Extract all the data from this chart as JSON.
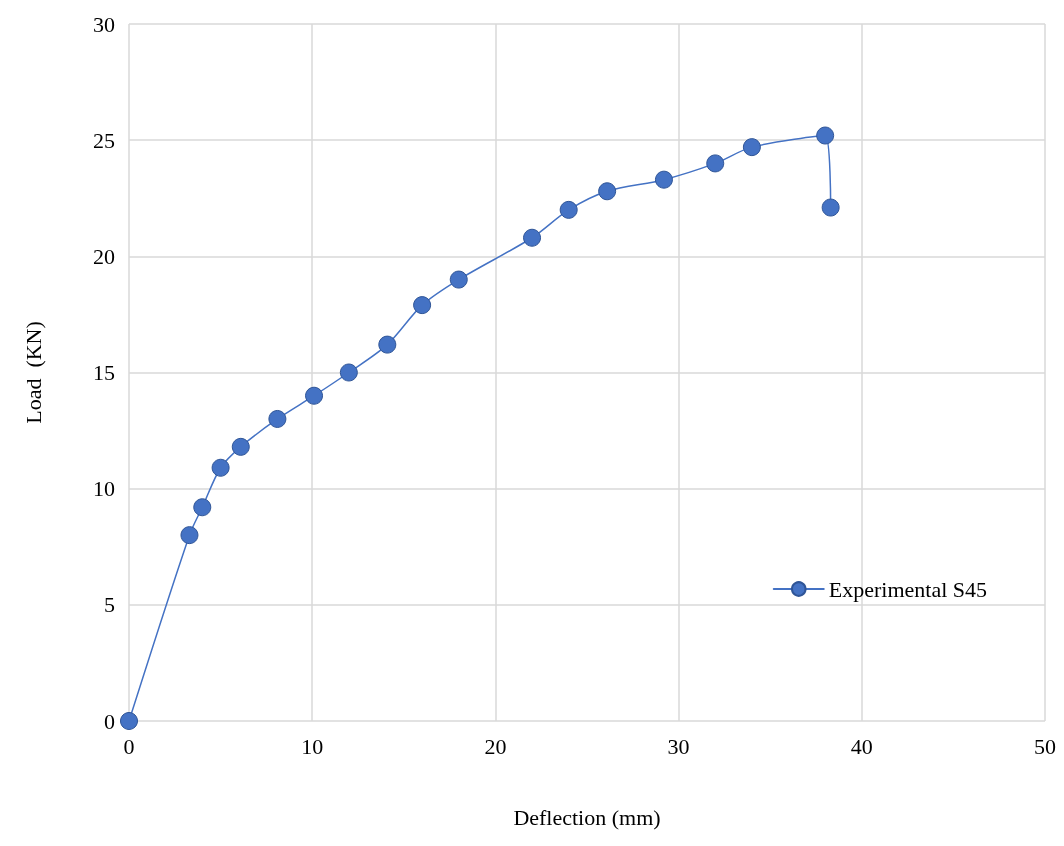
{
  "chart_data": {
    "type": "line",
    "xlabel": "Deflection (mm)",
    "ylabel": "Load  (KN)",
    "series": [
      {
        "name": "Experimental S45",
        "color": "#4472c4",
        "x": [
          0,
          3.3,
          4,
          5,
          6.1,
          8.1,
          10.1,
          12,
          14.1,
          16,
          18,
          22,
          24,
          26.1,
          29.2,
          32,
          34,
          38,
          38.3
        ],
        "values": [
          0,
          8,
          9.2,
          10.9,
          11.8,
          13,
          14,
          15,
          16.2,
          17.9,
          19,
          20.8,
          22,
          22.8,
          23.3,
          24,
          24.7,
          25.2,
          22.1
        ]
      }
    ],
    "xlim": [
      0,
      50
    ],
    "xticks": [
      0,
      10,
      20,
      30,
      40,
      50
    ],
    "ylim": [
      0,
      30
    ],
    "yticks": [
      0,
      5,
      10,
      15,
      20,
      25,
      30
    ],
    "grid": true,
    "legend": "right",
    "marker": "circle",
    "line_style": "solid"
  }
}
